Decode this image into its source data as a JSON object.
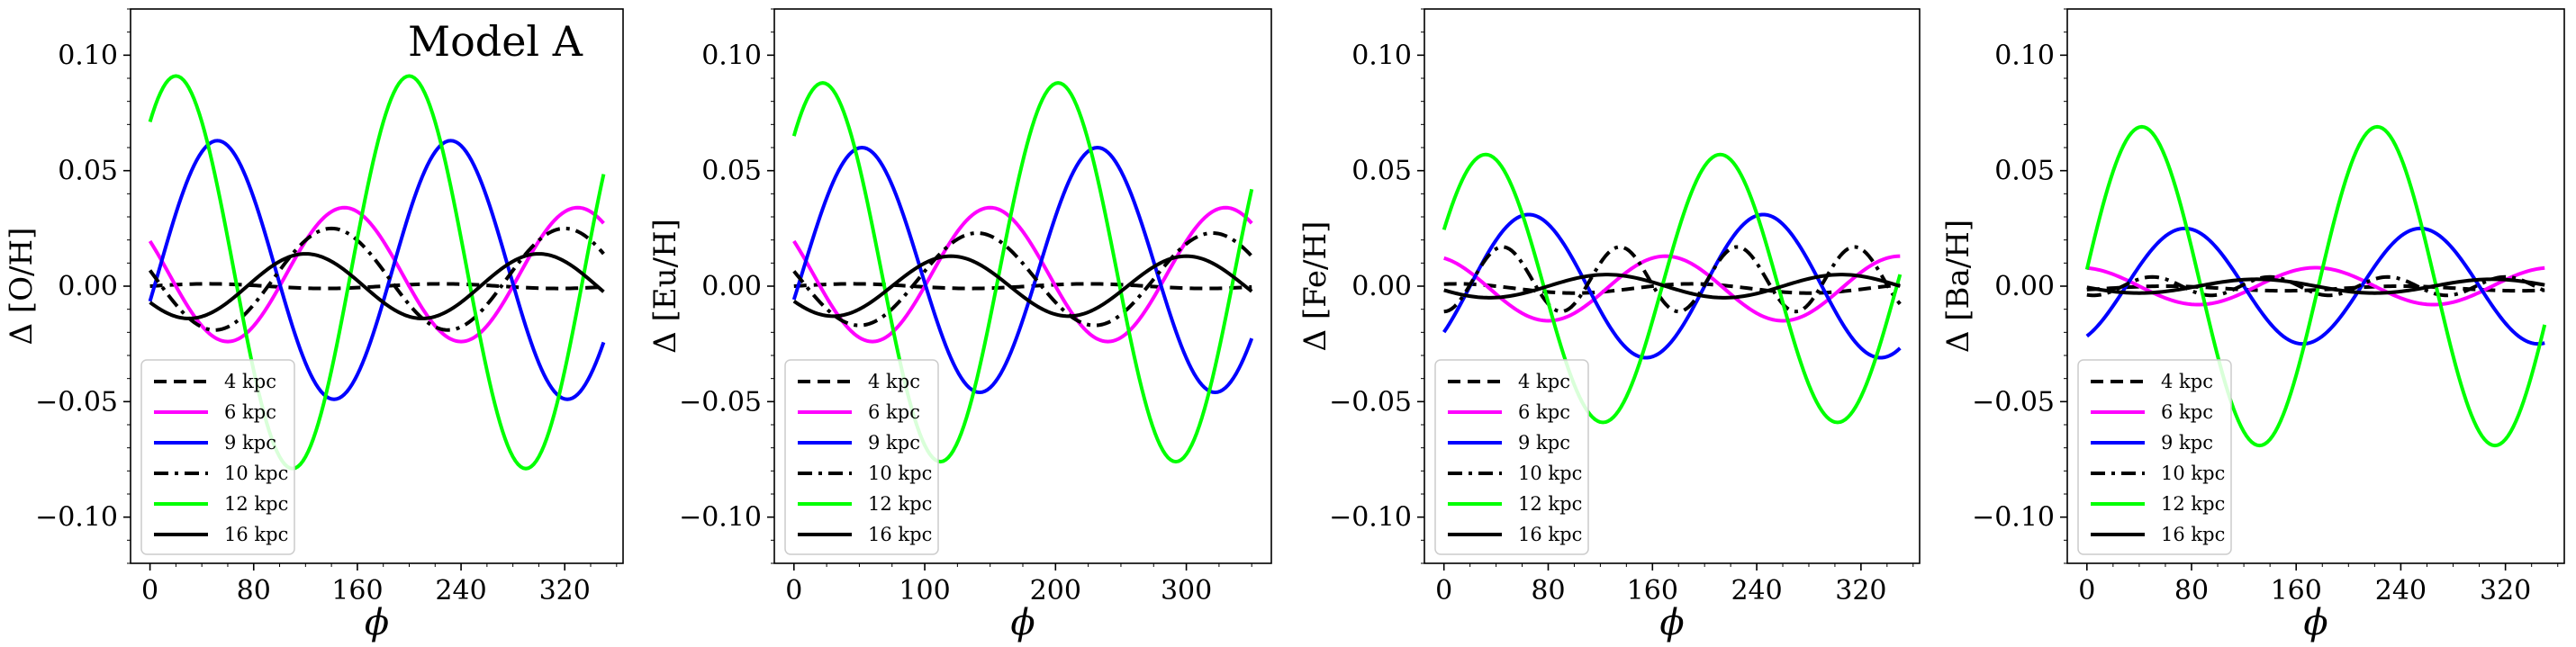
{
  "chart_data": [
    {
      "type": "line",
      "title": "",
      "annotation": "Model A",
      "xlabel": "ϕ",
      "ylabel": "Δ [O/H]",
      "xlim": [
        -15,
        365
      ],
      "ylim": [
        -0.12,
        0.12
      ],
      "xticks": [
        0,
        80,
        160,
        240,
        320
      ],
      "xtick_labels": [
        "0",
        "80",
        "160",
        "240",
        "320"
      ],
      "yticks": [
        0.1,
        0.05,
        0.0,
        -0.05,
        -0.1
      ],
      "ytick_labels": [
        "0.10",
        "0.05",
        "0.00",
        "−0.05",
        "−0.10"
      ],
      "legend": "lower-left",
      "series": [
        {
          "name": "4 kpc",
          "color": "#000000",
          "style": "dashed",
          "amp": 0.001,
          "period": 180,
          "phase": 45,
          "offset": 0
        },
        {
          "name": "6 kpc",
          "color": "#ff00ff",
          "style": "solid",
          "amp": 0.029,
          "period": 180,
          "phase": 150,
          "offset": 0.005
        },
        {
          "name": "9 kpc",
          "color": "#0000ff",
          "style": "solid",
          "amp": 0.056,
          "period": 180,
          "phase": 52,
          "offset": 0.007
        },
        {
          "name": "10 kpc",
          "color": "#000000",
          "style": "dashdot",
          "amp": 0.022,
          "period": 180,
          "phase": 140,
          "offset": 0.003
        },
        {
          "name": "12 kpc",
          "color": "#00ff00",
          "style": "solid",
          "amp": 0.085,
          "period": 180,
          "phase": 20,
          "offset": 0.006
        },
        {
          "name": "16 kpc",
          "color": "#000000",
          "style": "solid",
          "amp": 0.014,
          "period": 180,
          "phase": 120,
          "offset": 0
        }
      ]
    },
    {
      "type": "line",
      "title": "",
      "annotation": "",
      "xlabel": "ϕ",
      "ylabel": "Δ [Eu/H]",
      "xlim": [
        -15,
        365
      ],
      "ylim": [
        -0.12,
        0.12
      ],
      "xticks": [
        0,
        100,
        200,
        300
      ],
      "xtick_labels": [
        "0",
        "100",
        "200",
        "300"
      ],
      "yticks": [
        0.1,
        0.05,
        0.0,
        -0.05,
        -0.1
      ],
      "ytick_labels": [
        "0.10",
        "0.05",
        "0.00",
        "−0.05",
        "−0.10"
      ],
      "legend": "lower-left",
      "series": [
        {
          "name": "4 kpc",
          "color": "#000000",
          "style": "dashed",
          "amp": 0.001,
          "period": 180,
          "phase": 45,
          "offset": 0
        },
        {
          "name": "6 kpc",
          "color": "#ff00ff",
          "style": "solid",
          "amp": 0.029,
          "period": 180,
          "phase": 150,
          "offset": 0.005
        },
        {
          "name": "9 kpc",
          "color": "#0000ff",
          "style": "solid",
          "amp": 0.053,
          "period": 180,
          "phase": 52,
          "offset": 0.007
        },
        {
          "name": "10 kpc",
          "color": "#000000",
          "style": "dashdot",
          "amp": 0.02,
          "period": 180,
          "phase": 140,
          "offset": 0.003
        },
        {
          "name": "12 kpc",
          "color": "#00ff00",
          "style": "solid",
          "amp": 0.082,
          "period": 180,
          "phase": 22,
          "offset": 0.006
        },
        {
          "name": "16 kpc",
          "color": "#000000",
          "style": "solid",
          "amp": 0.013,
          "period": 180,
          "phase": 120,
          "offset": 0
        }
      ]
    },
    {
      "type": "line",
      "title": "",
      "annotation": "",
      "xlabel": "ϕ",
      "ylabel": "Δ [Fe/H]",
      "xlim": [
        -15,
        365
      ],
      "ylim": [
        -0.12,
        0.12
      ],
      "xticks": [
        0,
        80,
        160,
        240,
        320
      ],
      "xtick_labels": [
        "0",
        "80",
        "160",
        "240",
        "320"
      ],
      "yticks": [
        0.1,
        0.05,
        0.0,
        -0.05,
        -0.1
      ],
      "ytick_labels": [
        "0.10",
        "0.05",
        "0.00",
        "−0.05",
        "−0.10"
      ],
      "legend": "lower-left",
      "series": [
        {
          "name": "4 kpc",
          "color": "#000000",
          "style": "dashed",
          "amp": 0.002,
          "period": 180,
          "phase": 10,
          "offset": -0.001
        },
        {
          "name": "6 kpc",
          "color": "#ff00ff",
          "style": "solid",
          "amp": 0.014,
          "period": 180,
          "phase": 170,
          "offset": -0.001
        },
        {
          "name": "9 kpc",
          "color": "#0000ff",
          "style": "solid",
          "amp": 0.031,
          "period": 180,
          "phase": 65,
          "offset": 0
        },
        {
          "name": "10 kpc",
          "color": "#000000",
          "style": "dashdot",
          "amp": 0.014,
          "period": 90,
          "phase": 135,
          "offset": 0.003
        },
        {
          "name": "12 kpc",
          "color": "#00ff00",
          "style": "solid",
          "amp": 0.058,
          "period": 180,
          "phase": 32,
          "offset": -0.001
        },
        {
          "name": "16 kpc",
          "color": "#000000",
          "style": "solid",
          "amp": 0.005,
          "period": 180,
          "phase": 125,
          "offset": 0
        }
      ]
    },
    {
      "type": "line",
      "title": "",
      "annotation": "",
      "xlabel": "ϕ",
      "ylabel": "Δ [Ba/H]",
      "xlim": [
        -15,
        365
      ],
      "ylim": [
        -0.12,
        0.12
      ],
      "xticks": [
        0,
        80,
        160,
        240,
        320
      ],
      "xtick_labels": [
        "0",
        "80",
        "160",
        "240",
        "320"
      ],
      "yticks": [
        0.1,
        0.05,
        0.0,
        -0.05,
        -0.1
      ],
      "ytick_labels": [
        "0.10",
        "0.05",
        "0.00",
        "−0.05",
        "−0.10"
      ],
      "legend": "lower-left",
      "series": [
        {
          "name": "4 kpc",
          "color": "#000000",
          "style": "dashed",
          "amp": 0.001,
          "period": 180,
          "phase": 60,
          "offset": -0.001
        },
        {
          "name": "6 kpc",
          "color": "#ff00ff",
          "style": "solid",
          "amp": 0.008,
          "period": 180,
          "phase": 175,
          "offset": 0
        },
        {
          "name": "9 kpc",
          "color": "#0000ff",
          "style": "solid",
          "amp": 0.025,
          "period": 180,
          "phase": 75,
          "offset": 0
        },
        {
          "name": "10 kpc",
          "color": "#000000",
          "style": "dashdot",
          "amp": 0.004,
          "period": 90,
          "phase": 50,
          "offset": 0
        },
        {
          "name": "12 kpc",
          "color": "#00ff00",
          "style": "solid",
          "amp": 0.069,
          "period": 180,
          "phase": 42,
          "offset": 0
        },
        {
          "name": "16 kpc",
          "color": "#000000",
          "style": "solid",
          "amp": 0.003,
          "period": 180,
          "phase": 130,
          "offset": 0
        }
      ]
    }
  ]
}
